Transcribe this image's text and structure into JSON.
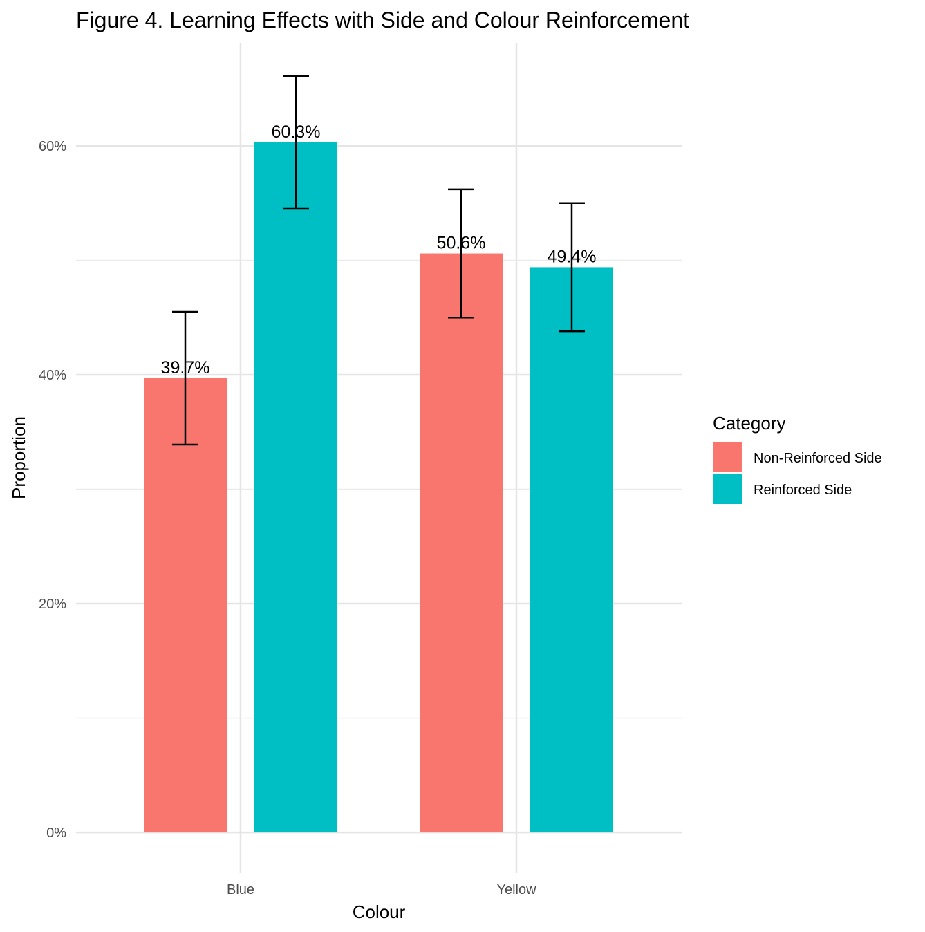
{
  "chart_data": {
    "type": "bar",
    "title": "Figure 4. Learning Effects with Side and Colour Reinforcement",
    "xlabel": "Colour",
    "ylabel": "Proportion",
    "categories": [
      "Blue",
      "Yellow"
    ],
    "series": [
      {
        "name": "Non-Reinforced Side",
        "color": "#F8766D",
        "values": [
          0.397,
          0.506
        ],
        "labels": [
          "39.7%",
          "50.6%"
        ],
        "error_low": [
          0.339,
          0.45
        ],
        "error_high": [
          0.455,
          0.562
        ]
      },
      {
        "name": "Reinforced Side",
        "color": "#00BFC4",
        "values": [
          0.603,
          0.494
        ],
        "labels": [
          "60.3%",
          "49.4%"
        ],
        "error_low": [
          0.545,
          0.438
        ],
        "error_high": [
          0.661,
          0.55
        ]
      }
    ],
    "ylim": [
      -0.035,
      0.69
    ],
    "yticks": [
      0,
      0.2,
      0.4,
      0.6
    ],
    "ytick_labels": [
      "0%",
      "20%",
      "40%",
      "60%"
    ],
    "grid": true,
    "legend": {
      "title": "Category",
      "position": "right"
    }
  }
}
